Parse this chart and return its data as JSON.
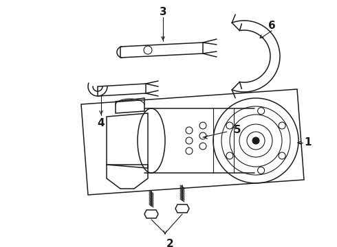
{
  "bg_color": "#ffffff",
  "line_color": "#1a1a1a",
  "figsize": [
    4.9,
    3.6
  ],
  "dpi": 100,
  "label_fontsize": 11
}
